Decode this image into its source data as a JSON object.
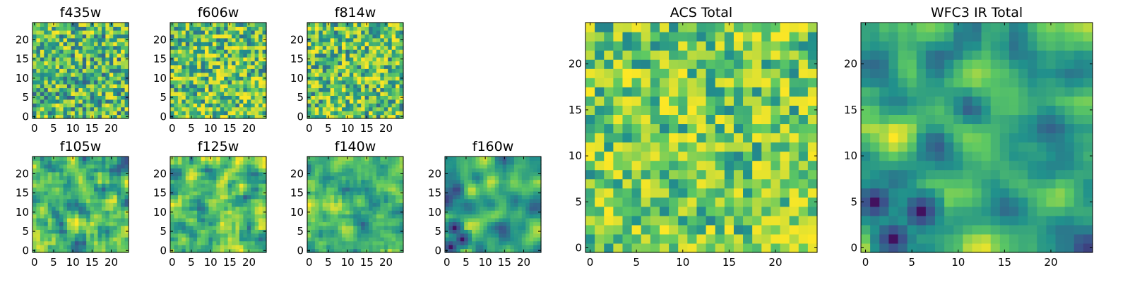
{
  "chart_data": {
    "type": "heatmap",
    "colormap": "viridis",
    "colormap_stops": [
      "#440154",
      "#3b528b",
      "#21918c",
      "#5ec962",
      "#fde725"
    ],
    "axis_range": [
      0,
      24
    ],
    "grid_size": 25,
    "panels": [
      {
        "id": "f435w",
        "title": "f435w",
        "xticks": [
          "0",
          "5",
          "10",
          "15",
          "20"
        ],
        "yticks": [
          "0",
          "5",
          "10",
          "15",
          "20"
        ],
        "seed": 435,
        "smooth": 0,
        "weight": 0.7,
        "gamma": 1.1,
        "cold_spots": []
      },
      {
        "id": "f606w",
        "title": "f606w",
        "xticks": [
          "0",
          "5",
          "10",
          "15",
          "20"
        ],
        "yticks": [
          "0",
          "5",
          "10",
          "15",
          "20"
        ],
        "seed": 606,
        "smooth": 0,
        "weight": 0.65,
        "gamma": 1.4,
        "cold_spots": []
      },
      {
        "id": "f814w",
        "title": "f814w",
        "xticks": [
          "0",
          "5",
          "10",
          "15",
          "20"
        ],
        "yticks": [
          "0",
          "5",
          "10",
          "15",
          "20"
        ],
        "seed": 814,
        "smooth": 0,
        "weight": 0.65,
        "gamma": 1.4,
        "cold_spots": []
      },
      {
        "id": "f105w",
        "title": "f105w",
        "xticks": [
          "0",
          "5",
          "10",
          "15",
          "20"
        ],
        "yticks": [
          "0",
          "5",
          "10",
          "15",
          "20"
        ],
        "seed": 105,
        "smooth": 1,
        "weight": 0.75,
        "gamma": 1.2,
        "cold_spots": []
      },
      {
        "id": "f125w",
        "title": "f125w",
        "xticks": [
          "0",
          "5",
          "10",
          "15",
          "20"
        ],
        "yticks": [
          "0",
          "5",
          "10",
          "15",
          "20"
        ],
        "seed": 125,
        "smooth": 1,
        "weight": 0.7,
        "gamma": 1.2,
        "cold_spots": []
      },
      {
        "id": "f140w",
        "title": "f140w",
        "xticks": [
          "0",
          "5",
          "10",
          "15",
          "20"
        ],
        "yticks": [
          "0",
          "5",
          "10",
          "15",
          "20"
        ],
        "seed": 140,
        "smooth": 1,
        "weight": 0.7,
        "gamma": 1.2,
        "cold_spots": []
      },
      {
        "id": "f160w",
        "title": "f160w",
        "xticks": [
          "0",
          "5",
          "10",
          "15",
          "20"
        ],
        "yticks": [
          "0",
          "5",
          "10",
          "15",
          "20"
        ],
        "seed": 160,
        "smooth": 2,
        "weight": 0.8,
        "gamma": 1.0,
        "cold_spots": [
          [
            1,
            1
          ],
          [
            4,
            3
          ],
          [
            2,
            6
          ]
        ]
      },
      {
        "id": "acs_total",
        "title": "ACS Total",
        "xticks": [
          "0",
          "5",
          "10",
          "15",
          "20"
        ],
        "yticks": [
          "0",
          "5",
          "10",
          "15",
          "20"
        ],
        "seed": 999,
        "smooth": 0,
        "weight": 0.55,
        "gamma": 1.3,
        "cold_spots": []
      },
      {
        "id": "wfc3_ir_total",
        "title": "WFC3 IR Total",
        "xticks": [
          "0",
          "5",
          "10",
          "15",
          "20"
        ],
        "yticks": [
          "0",
          "5",
          "10",
          "15",
          "20"
        ],
        "seed": 777,
        "smooth": 2,
        "weight": 0.8,
        "gamma": 1.0,
        "cold_spots": [
          [
            3,
            1
          ],
          [
            6,
            4
          ],
          [
            1,
            5
          ]
        ]
      }
    ]
  }
}
